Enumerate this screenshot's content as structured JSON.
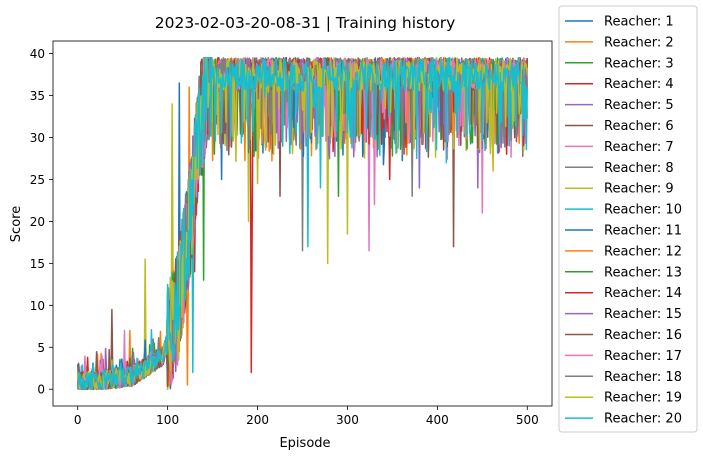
{
  "chart_data": {
    "type": "line",
    "title": "2023-02-03-20-08-31 | Training history",
    "xlabel": "Episode",
    "ylabel": "Score",
    "xlim": [
      -27.5,
      527.5
    ],
    "ylim": [
      -2.0,
      41.5
    ],
    "xticks": [
      "0",
      "100",
      "200",
      "300",
      "400",
      "500"
    ],
    "yticks": [
      "0",
      "5",
      "10",
      "15",
      "20",
      "25",
      "30",
      "35",
      "40"
    ],
    "grid": false,
    "legend_position": "outside-right",
    "colors": [
      "#1f77b4",
      "#ff7f0e",
      "#2ca02c",
      "#d62728",
      "#9467bd",
      "#8c564b",
      "#e377c2",
      "#7f7f7f",
      "#bcbd22",
      "#17becf"
    ],
    "x": {
      "start": 0,
      "end": 500,
      "step": 1
    },
    "trend": {
      "description": "All agents share the same learning curve: near zero until ~100 episodes, rapid rise between ~100 and ~145, then noisy plateau near 35-39.5",
      "knots_x": [
        0,
        60,
        95,
        110,
        125,
        135,
        145,
        160,
        500
      ],
      "knots_y": [
        0.8,
        1.5,
        4,
        9,
        20,
        31,
        36,
        37.5,
        37.5
      ]
    },
    "series": [
      {
        "name": "Reacher: 1",
        "peak": 39.5,
        "spikes": [
          [
            113,
            36.5
          ]
        ]
      },
      {
        "name": "Reacher: 2",
        "peak": 39.5,
        "spikes": [
          [
            124,
            36
          ],
          [
            58,
            7
          ]
        ]
      },
      {
        "name": "Reacher: 3",
        "peak": 39.5,
        "spikes": [
          [
            140,
            13
          ]
        ]
      },
      {
        "name": "Reacher: 4",
        "peak": 39.5,
        "spikes": [
          [
            193,
            2
          ],
          [
            194,
            19
          ],
          [
            130,
            14
          ]
        ]
      },
      {
        "name": "Reacher: 5",
        "peak": 39.5,
        "spikes": [
          [
            445,
            24
          ]
        ]
      },
      {
        "name": "Reacher: 6",
        "peak": 39.5,
        "spikes": [
          [
            38,
            9.5
          ],
          [
            418,
            17
          ],
          [
            225,
            23
          ]
        ]
      },
      {
        "name": "Reacher: 7",
        "peak": 39.5,
        "spikes": [
          [
            324,
            16.5
          ],
          [
            450,
            21
          ],
          [
            52,
            7
          ]
        ]
      },
      {
        "name": "Reacher: 8",
        "peak": 39.5,
        "spikes": [
          [
            250,
            16.5
          ],
          [
            495,
            28
          ]
        ]
      },
      {
        "name": "Reacher: 9",
        "peak": 39.5,
        "spikes": [
          [
            75,
            15.5
          ],
          [
            278,
            15
          ],
          [
            190,
            20
          ],
          [
            105,
            34
          ]
        ]
      },
      {
        "name": "Reacher: 10",
        "peak": 39.5,
        "spikes": [
          [
            256,
            17
          ],
          [
            497,
            30
          ],
          [
            128,
            2
          ]
        ]
      },
      {
        "name": "Reacher: 11",
        "peak": 39.5,
        "spikes": [
          [
            160,
            25
          ]
        ]
      },
      {
        "name": "Reacher: 12",
        "peak": 39.5,
        "spikes": [
          [
            122,
            0.5
          ]
        ]
      },
      {
        "name": "Reacher: 13",
        "peak": 39.5,
        "spikes": [
          [
            290,
            23
          ]
        ]
      },
      {
        "name": "Reacher: 14",
        "peak": 39.5,
        "spikes": [
          [
            347,
            25
          ]
        ]
      },
      {
        "name": "Reacher: 15",
        "peak": 39.5,
        "spikes": [
          [
            380,
            24
          ]
        ]
      },
      {
        "name": "Reacher: 16",
        "peak": 39.5,
        "spikes": [
          [
            90,
            4
          ]
        ]
      },
      {
        "name": "Reacher: 17",
        "peak": 39.5,
        "spikes": [
          [
            330,
            22
          ]
        ]
      },
      {
        "name": "Reacher: 18",
        "peak": 39.5,
        "spikes": [
          [
            372,
            23
          ]
        ]
      },
      {
        "name": "Reacher: 19",
        "peak": 39.5,
        "spikes": [
          [
            300,
            18.5
          ],
          [
            462,
            26
          ],
          [
            200,
            24.5
          ]
        ]
      },
      {
        "name": "Reacher: 20",
        "peak": 39.5,
        "spikes": [
          [
            270,
            24
          ],
          [
            410,
            27
          ],
          [
            480,
            29
          ]
        ]
      }
    ]
  }
}
